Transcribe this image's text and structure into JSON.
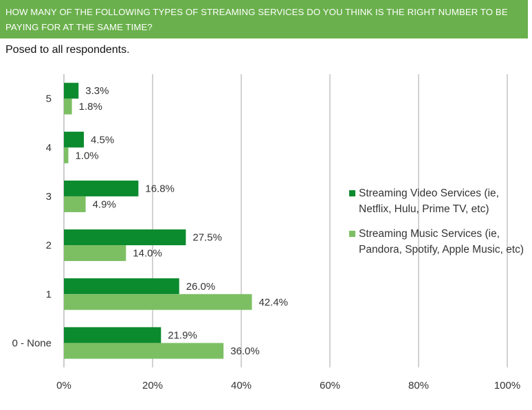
{
  "header": {
    "title": "HOW MANY OF THE FOLLOWING TYPES OF STREAMING SERVICES DO YOU THINK IS THE RIGHT NUMBER TO BE PAYING FOR AT THE SAME TIME?"
  },
  "subtitle": "Posed to all respondents.",
  "chart_data": {
    "type": "bar",
    "orientation": "horizontal",
    "title": "HOW MANY OF THE FOLLOWING TYPES OF STREAMING SERVICES DO YOU THINK IS THE RIGHT NUMBER TO BE PAYING FOR AT THE SAME TIME?",
    "subtitle": "Posed to all respondents.",
    "categories": [
      "5",
      "4",
      "3",
      "2",
      "1",
      "0 - None"
    ],
    "series": [
      {
        "name": "Streaming Video Services (ie, Netflix, Hulu, Prime TV, etc)",
        "color": "#0b8a2e",
        "values": [
          3.3,
          4.5,
          16.8,
          27.5,
          26.0,
          21.9
        ],
        "labels": [
          "3.3%",
          "4.5%",
          "16.8%",
          "27.5%",
          "26.0%",
          "21.9%"
        ]
      },
      {
        "name": "Streaming Music Services (ie, Pandora, Spotify, Apple Music, etc)",
        "color": "#7cbf63",
        "values": [
          1.8,
          1.0,
          4.9,
          14.0,
          42.4,
          36.0
        ],
        "labels": [
          "1.8%",
          "1.0%",
          "4.9%",
          "14.0%",
          "42.4%",
          "36.0%"
        ]
      }
    ],
    "xlim": [
      0,
      100
    ],
    "xticks": [
      "0%",
      "20%",
      "40%",
      "60%",
      "80%",
      "100%"
    ],
    "xlabel": "",
    "ylabel": "",
    "grid": "vertical",
    "legend": "right"
  }
}
